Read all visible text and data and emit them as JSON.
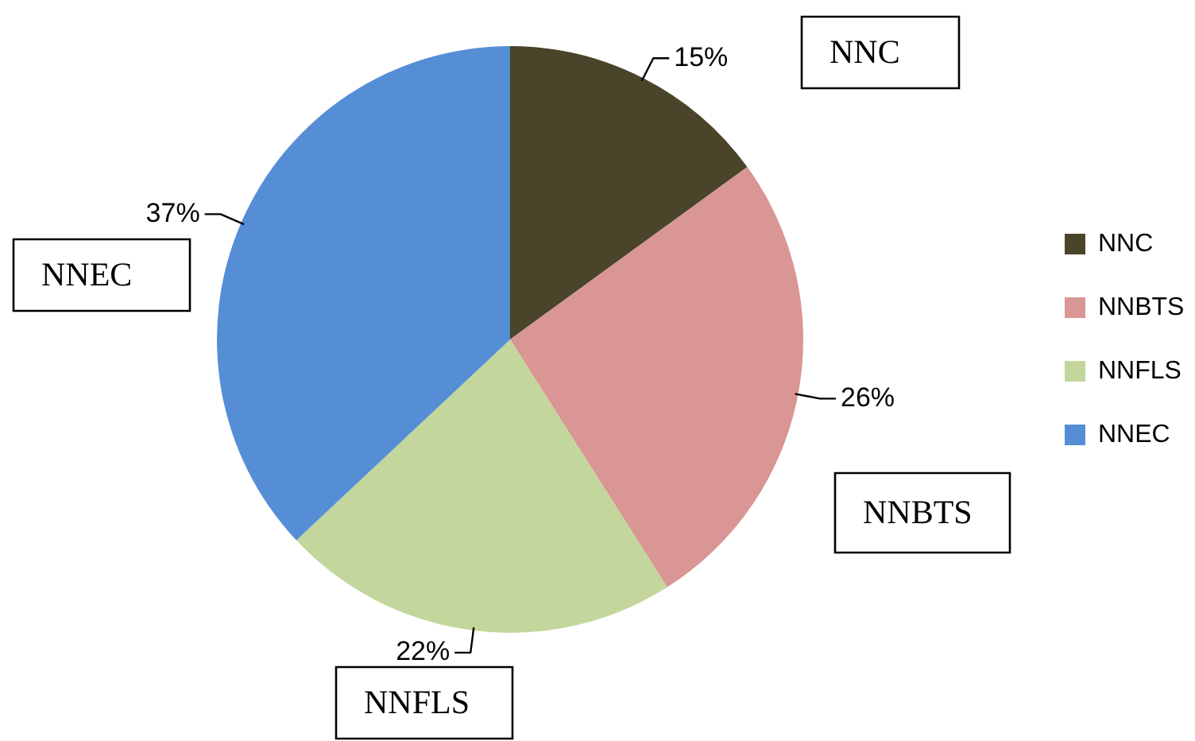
{
  "chart_data": {
    "type": "pie",
    "categories": [
      "NNC",
      "NNBTS",
      "NNFLS",
      "NNEC"
    ],
    "values": [
      15,
      26,
      22,
      37
    ],
    "colors": [
      "#4a442a",
      "#d99694",
      "#c3d69b",
      "#558ed5"
    ],
    "value_labels": [
      "15%",
      "26%",
      "22%",
      "37%"
    ],
    "legend": "right",
    "annotations": [
      "NNC",
      "NNBTS",
      "NNFLS",
      "NNEC"
    ]
  }
}
